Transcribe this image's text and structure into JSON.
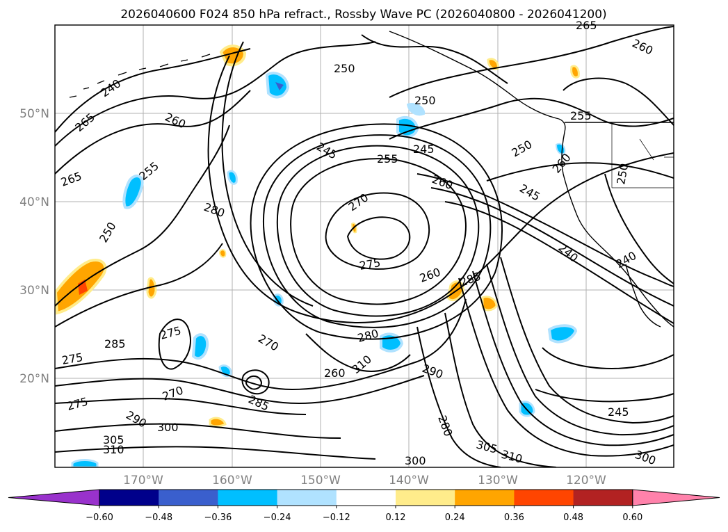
{
  "title": "2026040600 F024 850 hPa refract., Rossby Wave PC (2026040800 - 2026041200)",
  "map": {
    "lon_ticks": [
      "170°W",
      "160°W",
      "150°W",
      "140°W",
      "130°W",
      "120°W"
    ],
    "lat_ticks": [
      "50°N",
      "40°N",
      "30°N",
      "20°N"
    ],
    "grid": true,
    "coastline_color": "#000000"
  },
  "contour_labels": [
    "265",
    "260",
    "240",
    "250",
    "265",
    "255",
    "250",
    "260",
    "245",
    "255",
    "245",
    "250",
    "260",
    "270",
    "280",
    "250",
    "265",
    "255",
    "260",
    "245",
    "250",
    "275",
    "260",
    "285",
    "240",
    "240",
    "285",
    "275",
    "270",
    "280",
    "310",
    "290",
    "275",
    "260",
    "270",
    "275",
    "305",
    "310",
    "300",
    "280",
    "305",
    "310",
    "245",
    "300",
    "290",
    "285",
    "300"
  ],
  "colorbar": {
    "ticks": [
      "−0.60",
      "−0.48",
      "−0.36",
      "−0.24",
      "−0.12",
      "0.12",
      "0.24",
      "0.36",
      "0.48",
      "0.60"
    ],
    "colors": [
      "#9932cc",
      "#00008b",
      "#3a5fcd",
      "#00bfff",
      "#b0e2ff",
      "#ffffff",
      "#ffec8b",
      "#ffa500",
      "#ff4500",
      "#b22222",
      "#ff82ab"
    ]
  }
}
